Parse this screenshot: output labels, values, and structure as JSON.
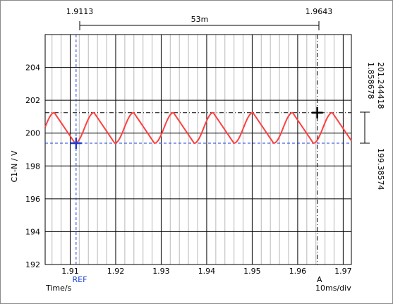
{
  "chart_data": {
    "type": "line",
    "title": "",
    "xlabel": "Time/s",
    "ylabel": "C1-N / V",
    "xlim": [
      1.9045,
      1.9718
    ],
    "ylim": [
      192,
      206
    ],
    "x_ticks": [
      1.91,
      1.92,
      1.93,
      1.94,
      1.95,
      1.96,
      1.97
    ],
    "x_tick_labels": [
      "1.91",
      "1.92",
      "1.93",
      "1.94",
      "1.95",
      "1.96",
      "1.97"
    ],
    "y_ticks": [
      192,
      194,
      196,
      198,
      200,
      202,
      204
    ],
    "y_tick_labels": [
      "192",
      "194",
      "196",
      "198",
      "200",
      "202",
      "204"
    ],
    "grid": true,
    "timebase_label": "10ms/div",
    "series": [
      {
        "color": "#ff4040",
        "period": 0.00873,
        "phase_min_time": 1.91106,
        "min": 199.386,
        "max": 201.244,
        "fall_fraction": 0.52,
        "x_start": 1.9045,
        "x_end": 1.9718
      }
    ],
    "cursors": {
      "ref": {
        "label": "REF",
        "x": 1.9113,
        "y": 199.38574,
        "color": "#1a3fd6"
      },
      "a": {
        "label": "A",
        "x": 1.9643,
        "y": 201.244418,
        "color": "#000000"
      },
      "delta_x_label": "53m",
      "ref_x_label": "1.9113",
      "a_x_label": "1.9643",
      "ref_y_label": "199.38574",
      "a_y_label": "201.244418",
      "delta_y_label": "1.858678"
    }
  }
}
